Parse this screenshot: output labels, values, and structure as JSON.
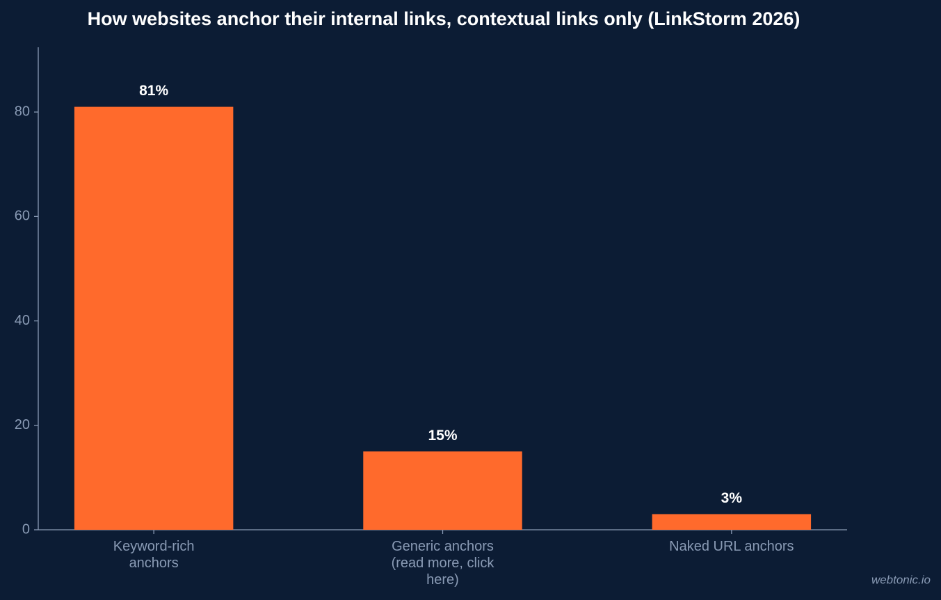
{
  "chart_data": {
    "type": "bar",
    "title": "How websites anchor their internal links, contextual links only (LinkStorm 2026)",
    "categories": [
      "Keyword-rich anchors",
      "Generic anchors (read more, click here)",
      "Naked URL anchors"
    ],
    "values": [
      81,
      15,
      3
    ],
    "value_labels": [
      "81%",
      "15%",
      "3%"
    ],
    "color": "#ff6a2c",
    "ylim": [
      0,
      92.4
    ],
    "yticks": [
      0,
      20,
      40,
      60,
      80
    ],
    "grid": false,
    "watermark": "webtonic.io"
  }
}
